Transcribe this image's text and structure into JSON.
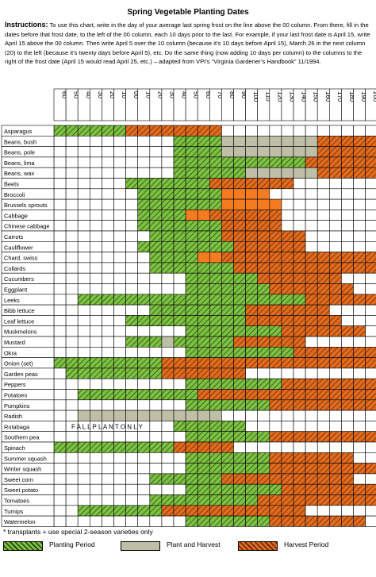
{
  "title": "Spring Vegetable Planting Dates",
  "instructions": {
    "label": "Instructions:",
    "text": "To use this chart, write in the day of your average last spring frost on the line above the 00 column.  From there, fill in the dates before that frost date, to the left of the 00 column, each 10 days prior to the last.  For example, if your last frost date is April 15, write April 15 above the 00 column.  Then write April 5 over the 10 column (because it’s 10 days before April 15), March 26 in the next column (20) to the left (because it’s twenty days before April 5), etc.  Do the same thing (now adding 10 days per column) to the columns to the right of the frost date (April 15 would read April 25, etc.) – adapted from VPI’s “Virginia Gardener’s Handbook” 11/1994."
  },
  "columns": [
    "60",
    "50",
    "40",
    "30",
    "20",
    "10",
    "00",
    "10",
    "20",
    "30",
    "40",
    "50",
    "60",
    "70",
    "80",
    "90",
    "100",
    "110",
    "120",
    "130",
    "140",
    "150",
    "160",
    "170",
    "180",
    "190",
    "200"
  ],
  "crops": [
    "Asparagus",
    "Beans, bush",
    "Beans, pole",
    "Beans, lima",
    "Beans, wax",
    "Beets",
    "Broccoli",
    "Brussels sprouts",
    "Cabbage",
    "Chinese cabbage",
    "Carrots",
    "Cauliflower",
    "Chard, swiss",
    "Collards",
    "Cucumbers",
    "Eggplant",
    "Leeks",
    "Bibb lettuce",
    "Leaf lettuce",
    "Muskmelons",
    "Mustard",
    "Okra",
    "Onion (set)",
    "Garden peas",
    "Peppers",
    "Potatoes",
    "Pumpkins",
    "Radish",
    "Rutabaga",
    "Southern pea",
    "Spinach",
    "Summer squash",
    "Winter squash",
    "Sweet corn",
    "Sweet potato",
    "Tomatoes",
    "Turnips",
    "Watermelon"
  ],
  "grid": [
    "GGGGGGHHHHHHHH.............",
    "..........GGGGPPPPPPPPHHHHH",
    "..........GGGGPPPPPPPPHHHHH",
    "..........GGGGGGGGGGGHHHHHH",
    "..........GGGGGGPPPPPPHHHHH",
    "......GGGGGGGHHHHHHH.......",
    ".......GGGGGGGSSSS.........",
    ".......GGGGGGGSSSSS........",
    ".......GGGGSSHHHHHH........",
    ".......GGGGGGGHHHHH........",
    "........GGGGGGHHHHHHH......",
    ".......GGGGGGGGHHHHHH......",
    "........GGGGSSHHHHHHHHHHHHH",
    "........GGGGGGGHHHHHHHHHHHH",
    "...........GGGGGGHHHHHHH...",
    "...........GGGGGGGHHHHHHH..",
    "..GGGGGGGGGGGGGGGGGGGHHHHHH",
    "........GGGGGGGGHHHHHHH....",
    "......GGGGGGGGGGHHHHHHHH...",
    "...........GGGGGGGGHHHHHHH.",
    "......GGGPGGGGGHHHHHH......",
    "...........GGGGGGGGGHHHHHHH",
    "GGGGGGGGGHHHHHHHHHHHHHHHHHH",
    ".GGGGGGGGHHHHHHH...........",
    "...........GGGGGGGGHHHHHHHH",
    "..GGGGGGGGGGHHHHHHHHHHHHHHH",
    "...........GGGGGGGHHHHHHHHH",
    "..PPPPPPPPPPPP.............",
    "..........GGGGGG...........",
    "...........GGGGGGGHHHHHHHHH",
    "GGGGGGGGGGHHHHH............",
    "...........GGGGGGGHHHHHHH..",
    "...........GGGGGGGHHHHHHHHH",
    "........GGGGGGHHHHHHHHHHH..",
    "...........GGGGGGGGHHHHHHHH",
    "........GGGGGGGGGHHHHHHHHHH",
    "..GGGGGGGHHHHHHHHHHHH......",
    "...........GGGGGGGHHHHHHHH."
  ],
  "rutabaga_text": "F  A  L  L     P  L  A  N  T     O  N  L  Y",
  "footnote": "*  transplants   + use special 2-season varieties only",
  "legend": [
    {
      "label": "Planting Period",
      "key": "G"
    },
    {
      "label": "Plant and Harvest",
      "key": "P"
    },
    {
      "label": "Harvest Period",
      "key": "H"
    }
  ],
  "colors": {
    "planting": "#7dc242",
    "plant_harvest": "#bfbfa8",
    "harvest": "#e26b1d",
    "solid_orange": "#f47b20"
  }
}
